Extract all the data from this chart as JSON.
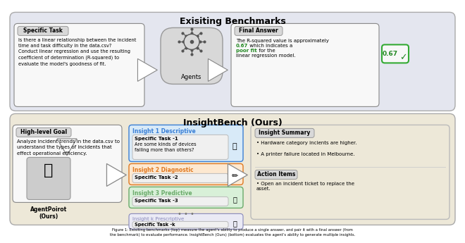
{
  "title_top": "Exisiting Benchmarks",
  "title_bottom": "InsightBench (Ours)",
  "caption": "Figure 1: Exisiting benchmarks (top) measure the agent's ability to produce a single answer, and pair it with a final answer (from\nthe benchmark) to evaluate performance. InsightBench (Ours) (bottom) evaluates the agent’s ability to generate multiple insights.",
  "specific_task_label": "Specific Task",
  "specific_task_text": "Is there a linear relationship between the incident\ntime and task difficulty in the data.csv?\nConduct linear regression and use the resulting\ncoefficient of determination (R-squared) to\nevaluate the model's goodness of fit.",
  "agents_label": "Agents",
  "final_answer_label": "Final Answer",
  "final_answer_value": "0.67",
  "high_level_goal_label": "High-level Goal",
  "high_level_goal_text": "Analyze incident trends in the data.csv to\nunderstand the types of incidents that\neffect operational efficiency.",
  "agent_name": "AgentPoirot\n(Ours)",
  "insight_labels": [
    "Insight 1 Descriptive",
    "Insight 2 Diagnostic",
    "Insight 3 Predictive",
    "Insight k Prescriptive"
  ],
  "insight_colors": [
    "#3a7fd5",
    "#e07820",
    "#6aaa6a",
    "#8888bb"
  ],
  "insight_bgs": [
    "#d8eaf8",
    "#fde8d0",
    "#d8f0d8",
    "#eaeaf5"
  ],
  "insight_tasks": [
    "Specific Task -1",
    "Specific Task -2",
    "Specific Task -3",
    "Specific Task -k"
  ],
  "insight_subtext": "Are some kinds of devices\nfailing more than others?",
  "insight_summary_label": "Insight Summary",
  "insight_summary_bullets": [
    "Hardware category incients are higher.",
    "A printer failure located in Melbourne."
  ],
  "action_items_label": "Action Items",
  "action_items_bullets": [
    "Open an incident ticket to replace the\nasset."
  ],
  "top_bg": "#e4e6ef",
  "bottom_bg": "#ede8d8",
  "white_box": "#f8f8f8",
  "grey_label_bg": "#d8d8d8",
  "agent_box_bg": "#d0d0d0"
}
